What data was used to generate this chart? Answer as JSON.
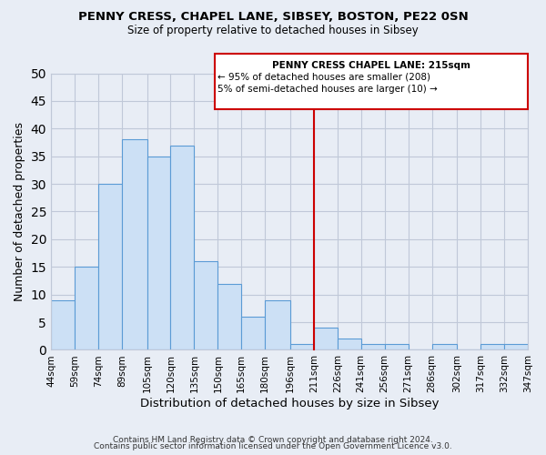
{
  "title1": "PENNY CRESS, CHAPEL LANE, SIBSEY, BOSTON, PE22 0SN",
  "title2": "Size of property relative to detached houses in Sibsey",
  "xlabel": "Distribution of detached houses by size in Sibsey",
  "ylabel": "Number of detached properties",
  "footer1": "Contains HM Land Registry data © Crown copyright and database right 2024.",
  "footer2": "Contains public sector information licensed under the Open Government Licence v3.0.",
  "bin_edges": [
    44,
    59,
    74,
    89,
    105,
    120,
    135,
    150,
    165,
    180,
    196,
    211,
    226,
    241,
    256,
    271,
    286,
    302,
    317,
    332,
    347
  ],
  "bin_labels": [
    "44sqm",
    "59sqm",
    "74sqm",
    "89sqm",
    "105sqm",
    "120sqm",
    "135sqm",
    "150sqm",
    "165sqm",
    "180sqm",
    "196sqm",
    "211sqm",
    "226sqm",
    "241sqm",
    "256sqm",
    "271sqm",
    "286sqm",
    "302sqm",
    "317sqm",
    "332sqm",
    "347sqm"
  ],
  "counts": [
    9,
    15,
    30,
    38,
    35,
    37,
    16,
    12,
    6,
    9,
    1,
    4,
    2,
    1,
    1,
    0,
    1,
    0,
    1,
    1
  ],
  "bar_color": "#cce0f5",
  "bar_edge_color": "#5b9bd5",
  "grid_color": "#c0c8d8",
  "bg_color": "#e8edf5",
  "vline_x": 211,
  "vline_color": "#cc0000",
  "annotation_title": "PENNY CRESS CHAPEL LANE: 215sqm",
  "annotation_line1": "← 95% of detached houses are smaller (208)",
  "annotation_line2": "5% of semi-detached houses are larger (10) →",
  "annotation_box_color": "#cc0000",
  "ylim": [
    0,
    50
  ],
  "yticks": [
    0,
    5,
    10,
    15,
    20,
    25,
    30,
    35,
    40,
    45,
    50
  ]
}
